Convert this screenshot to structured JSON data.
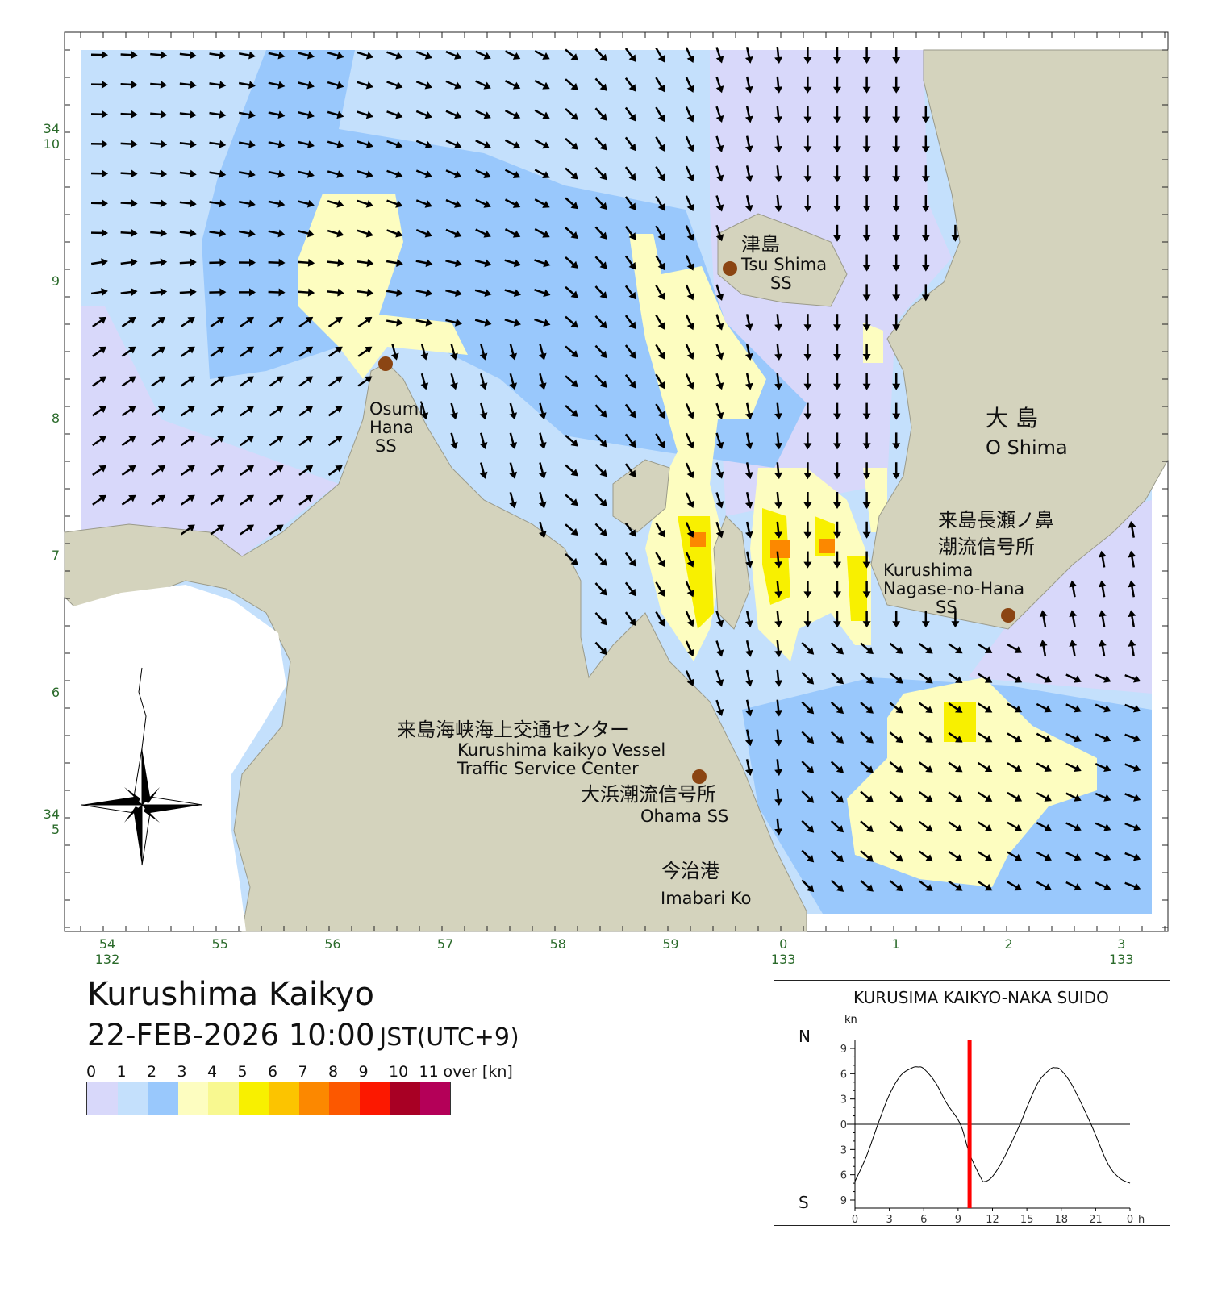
{
  "title": "Kurushima Kaikyo",
  "datetime": "22-FEB-2026 10:00",
  "timezone": "JST(UTC+9)",
  "legend": {
    "labels": [
      "0",
      "1",
      "2",
      "3",
      "4",
      "5",
      "6",
      "7",
      "8",
      "9",
      "10",
      "11"
    ],
    "over_label": "over [kn]",
    "colors": [
      "#d8d8fa",
      "#c4e0fc",
      "#99c8fc",
      "#fdfdc0",
      "#f8f890",
      "#f8f000",
      "#fcc400",
      "#fc8800",
      "#fc5800",
      "#fc1800",
      "#a80024",
      "#b40058"
    ]
  },
  "map": {
    "colors": {
      "land": "#d4d3bd",
      "water0": "#d8d8fa",
      "water1": "#c4e0fc",
      "water2": "#99c8fc",
      "water3": "#fdfdc0",
      "water5": "#f8f000",
      "water7": "#fc8800",
      "axis": "#2a6a2a",
      "station": "#8b4513"
    },
    "lon_ticks": [
      {
        "min": "54",
        "deg": "132"
      },
      {
        "min": "55"
      },
      {
        "min": "56"
      },
      {
        "min": "57"
      },
      {
        "min": "58"
      },
      {
        "min": "59"
      },
      {
        "min": "0",
        "deg": "133"
      },
      {
        "min": "1"
      },
      {
        "min": "2"
      },
      {
        "min": "3",
        "deg": "133"
      }
    ],
    "lat_ticks": [
      {
        "deg": "34",
        "min": "10"
      },
      {
        "min": "9"
      },
      {
        "min": "8"
      },
      {
        "min": "7"
      },
      {
        "min": "6"
      },
      {
        "deg": "34",
        "min": "5"
      }
    ],
    "labels": {
      "tsu_jp": "津島",
      "tsu_en": "Tsu Shima",
      "tsu_ss": "SS",
      "osumi1": "Osumi",
      "osumi2": "Hana",
      "osumi3": "SS",
      "oshima_jp": "大 島",
      "oshima_en": "O Shima",
      "nagase_jp1": "来島長瀬ノ鼻",
      "nagase_jp2": "潮流信号所",
      "nagase_en1": "Kurushima",
      "nagase_en2": "Nagase-no-Hana",
      "nagase_en3": "SS",
      "vts_jp": "来島海峡海上交通センター",
      "vts_en1": "Kurushima kaikyo Vessel",
      "vts_en2": "Traffic Service Center",
      "ohama_jp": "大浜潮流信号所",
      "ohama_en": "Ohama SS",
      "imabari_jp": "今治港",
      "imabari_en": "Imabari Ko"
    }
  },
  "tide_chart": {
    "title": "KURUSIMA KAIKYO-NAKA SUIDO",
    "unit": "kn",
    "north_label": "N",
    "south_label": "S",
    "y_ticks": [
      "9",
      "6",
      "3",
      "0",
      "3",
      "6",
      "9"
    ],
    "x_ticks": [
      "0",
      "3",
      "6",
      "9",
      "12",
      "15",
      "18",
      "21",
      "0"
    ],
    "x_unit": "h",
    "current_hour": 10,
    "chart_data": {
      "type": "line",
      "xlim": [
        0,
        24
      ],
      "ylim": [
        -9,
        9
      ],
      "ylabel": "kn",
      "x": [
        0,
        1,
        2,
        3,
        4,
        5,
        5.5,
        6,
        7,
        8,
        9.2,
        10,
        11,
        11.3,
        12,
        13,
        14.4,
        15,
        16,
        17,
        17.5,
        18,
        19,
        20.6,
        22,
        23,
        24
      ],
      "y": [
        -6.8,
        -3.8,
        0,
        3.5,
        5.8,
        6.7,
        6.8,
        6.6,
        5,
        2.5,
        0,
        -3.5,
        -6.4,
        -6.8,
        -6.2,
        -4,
        0,
        2,
        5,
        6.5,
        6.7,
        6.4,
        4.5,
        0,
        -4.5,
        -6.3,
        -7
      ]
    }
  }
}
